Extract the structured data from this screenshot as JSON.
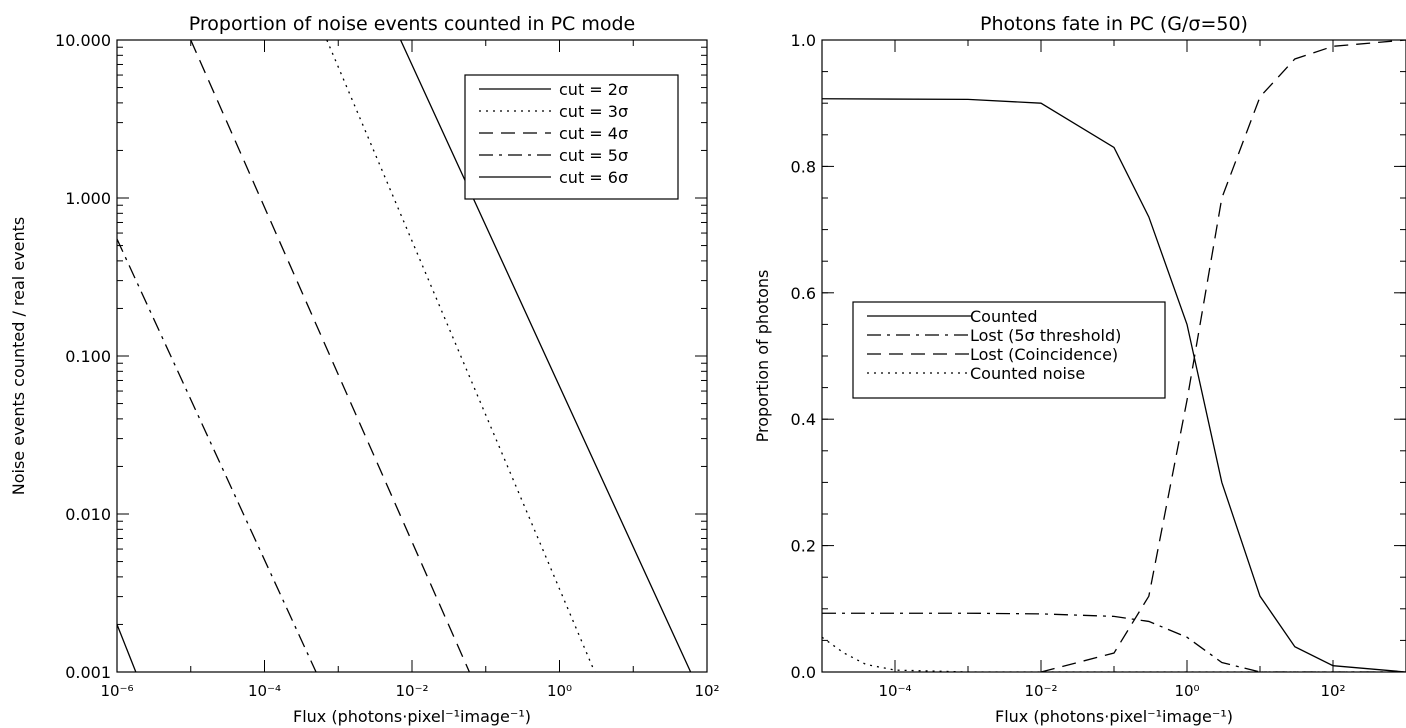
{
  "chart_data": [
    {
      "type": "line",
      "title": "Proportion of noise events counted in PC mode",
      "xlabel": "Flux (photons·pixel⁻¹image⁻¹)",
      "ylabel": "Noise events counted / real events",
      "xscale": "log",
      "yscale": "log",
      "xlim": [
        1e-06,
        100
      ],
      "ylim": [
        0.001,
        10
      ],
      "x_ticks": [
        {
          "value": 1e-06,
          "label": "10⁻⁶"
        },
        {
          "value": 0.0001,
          "label": "10⁻⁴"
        },
        {
          "value": 0.01,
          "label": "10⁻²"
        },
        {
          "value": 1,
          "label": "10⁰"
        },
        {
          "value": 100,
          "label": "10²"
        }
      ],
      "y_ticks": [
        {
          "value": 0.001,
          "label": "0.001"
        },
        {
          "value": 0.01,
          "label": "0.010"
        },
        {
          "value": 0.1,
          "label": "0.100"
        },
        {
          "value": 1,
          "label": "1.000"
        },
        {
          "value": 10,
          "label": "10.000"
        }
      ],
      "grid": false,
      "legend_position": "top-right",
      "series": [
        {
          "name": "cut = 2σ",
          "dash": "solid",
          "points": []
        },
        {
          "name": "cut = 3σ",
          "dash": "dotted",
          "points": [
            [
              0.0007,
              10
            ],
            [
              3,
              0.001
            ]
          ]
        },
        {
          "name": "cut = 4σ",
          "dash": "dashed",
          "points": [
            [
              1e-05,
              10
            ],
            [
              0.06,
              0.001
            ]
          ]
        },
        {
          "name": "cut = 5σ",
          "dash": "dashdot",
          "points": [
            [
              1e-06,
              0.55
            ],
            [
              0.0005,
              0.001
            ]
          ]
        },
        {
          "name": "cut = 6σ",
          "dash": "solid",
          "points": [
            [
              0.007,
              10
            ],
            [
              60,
              0.001
            ]
          ]
        },
        {
          "name": "",
          "dash": "solid",
          "points": [
            [
              1e-06,
              0.002
            ],
            [
              1.8e-06,
              0.001
            ]
          ]
        }
      ]
    },
    {
      "type": "line",
      "title": "Photons fate in PC (G/σ=50)",
      "xlabel": "Flux (photons·pixel⁻¹image⁻¹)",
      "ylabel": "Proportion of photons",
      "xscale": "log",
      "yscale": "linear",
      "xlim": [
        1e-05,
        1000
      ],
      "ylim": [
        0,
        1
      ],
      "x_ticks": [
        {
          "value": 0.0001,
          "label": "10⁻⁴"
        },
        {
          "value": 0.01,
          "label": "10⁻²"
        },
        {
          "value": 1,
          "label": "10⁰"
        },
        {
          "value": 100,
          "label": "10²"
        }
      ],
      "y_ticks": [
        {
          "value": 0,
          "label": "0.0"
        },
        {
          "value": 0.2,
          "label": "0.2"
        },
        {
          "value": 0.4,
          "label": "0.4"
        },
        {
          "value": 0.6,
          "label": "0.6"
        },
        {
          "value": 0.8,
          "label": "0.8"
        },
        {
          "value": 1,
          "label": "1.0"
        }
      ],
      "grid": false,
      "legend_position": "center-left",
      "series": [
        {
          "name": "Counted",
          "dash": "solid",
          "points": [
            [
              1e-05,
              0.907
            ],
            [
              0.001,
              0.906
            ],
            [
              0.01,
              0.9
            ],
            [
              0.1,
              0.83
            ],
            [
              0.3,
              0.72
            ],
            [
              1,
              0.55
            ],
            [
              3,
              0.3
            ],
            [
              10,
              0.12
            ],
            [
              30,
              0.04
            ],
            [
              100,
              0.01
            ],
            [
              1000,
              0
            ]
          ]
        },
        {
          "name": "Lost (5σ threshold)",
          "dash": "dashdot",
          "points": [
            [
              1e-05,
              0.093
            ],
            [
              0.001,
              0.093
            ],
            [
              0.01,
              0.092
            ],
            [
              0.1,
              0.088
            ],
            [
              0.3,
              0.08
            ],
            [
              1,
              0.055
            ],
            [
              3,
              0.015
            ],
            [
              10,
              0
            ],
            [
              1000,
              0
            ]
          ]
        },
        {
          "name": "Lost (Coincidence)",
          "dash": "dashed",
          "points": [
            [
              0.01,
              0
            ],
            [
              0.1,
              0.03
            ],
            [
              0.3,
              0.12
            ],
            [
              1,
              0.43
            ],
            [
              3,
              0.75
            ],
            [
              10,
              0.91
            ],
            [
              30,
              0.97
            ],
            [
              100,
              0.99
            ],
            [
              1000,
              1.0
            ]
          ]
        },
        {
          "name": "Counted noise",
          "dash": "dotted",
          "points": [
            [
              1e-05,
              0.055
            ],
            [
              2e-05,
              0.03
            ],
            [
              4e-05,
              0.012
            ],
            [
              0.0001,
              0.003
            ],
            [
              0.001,
              0
            ],
            [
              1000,
              0
            ]
          ]
        }
      ]
    }
  ]
}
